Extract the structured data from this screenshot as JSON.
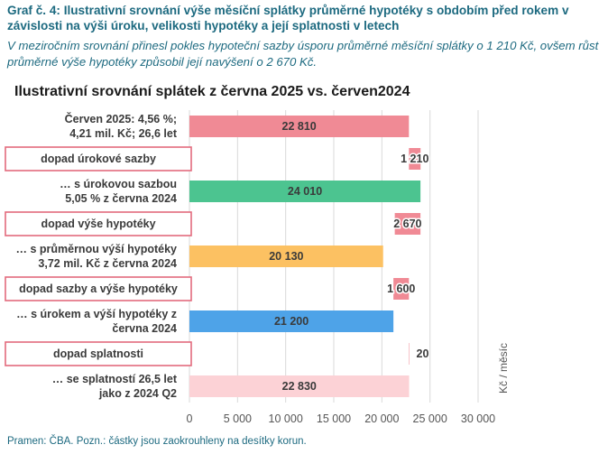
{
  "graf_title": "Graf č. 4: Ilustrativní srovnání výše měsíční splátky průměrné hypotéky s obdobím před rokem v závislosti na výši úroku, velikosti hypotéky a její splatnosti v letech",
  "graf_subtitle": "V meziročním srovnání přinesl pokles hypoteční sazby úsporu průměrné měsíční splátky o 1 210 Kč, ovšem růst průměrné výše hypotéky způsobil její navýšení o 2 670 Kč.",
  "footer_note": "Pramen: ČBA. Pozn.: částky jsou zaokrouhleny na desítky korun.",
  "chart_data": {
    "type": "bar",
    "orientation": "horizontal",
    "waterfall": true,
    "title": "Ilustrativní srovnání splátek z června 2025 vs. červen2024",
    "ylabel": "Kč / měsíc",
    "xlim": [
      0,
      30000
    ],
    "x_ticks": [
      0,
      5000,
      10000,
      15000,
      20000,
      25000,
      30000
    ],
    "x_tick_labels": [
      "0",
      "5 000",
      "10 000",
      "15 000",
      "20 000",
      "25 000",
      "30 000"
    ],
    "grid": true,
    "bars": [
      {
        "label_lines": [
          "Červen 2025: 4,56 %;",
          "4,21 mil. Kč; 26,6 let"
        ],
        "start": 0,
        "end": 22810,
        "value_label": "22 810",
        "color": "#f08a95",
        "boxed": false,
        "label_inside": true
      },
      {
        "label_lines": [
          "dopad úrokové sazby"
        ],
        "start": 22810,
        "end": 24020,
        "value_label": "1 210",
        "color": "#f08a95",
        "boxed": true,
        "label_inside": false
      },
      {
        "label_lines": [
          "… s úrokovou sazbou",
          "5,05 % z června 2024"
        ],
        "start": 0,
        "end": 24010,
        "value_label": "24 010",
        "color": "#4cc490",
        "boxed": false,
        "label_inside": true
      },
      {
        "label_lines": [
          "dopad výše hypotéky"
        ],
        "start": 21340,
        "end": 24010,
        "value_label": "2 670",
        "color": "#f08a95",
        "boxed": true,
        "label_inside": false
      },
      {
        "label_lines": [
          "… s průměrnou výší hypotéky",
          "3,72 mil. Kč z června 2024"
        ],
        "start": 0,
        "end": 20130,
        "value_label": "20 130",
        "color": "#fcc162",
        "boxed": false,
        "label_inside": true
      },
      {
        "label_lines": [
          "dopad sazby a výše hypotéky"
        ],
        "start": 21200,
        "end": 22810,
        "value_label": "1 600",
        "color": "#f08a95",
        "boxed": true,
        "label_inside": false
      },
      {
        "label_lines": [
          "… s úrokem a výší hypotéky z",
          "června 2024"
        ],
        "start": 0,
        "end": 21200,
        "value_label": "21 200",
        "color": "#4ea3e8",
        "boxed": false,
        "label_inside": true
      },
      {
        "label_lines": [
          "dopad splatnosti"
        ],
        "start": 22810,
        "end": 22830,
        "value_label": "20",
        "color": "#f08a95",
        "boxed": true,
        "label_inside": false
      },
      {
        "label_lines": [
          "… se splatností 26,5 let",
          "jako z 2024 Q2"
        ],
        "start": 0,
        "end": 22830,
        "value_label": "22 830",
        "color": "#fcd2d6",
        "boxed": false,
        "label_inside": true
      }
    ],
    "colors": {
      "box_border": "#e36b7d",
      "grid": "#d9d9d9",
      "text": "#3a3a3a",
      "axis_text": "#555555"
    }
  }
}
